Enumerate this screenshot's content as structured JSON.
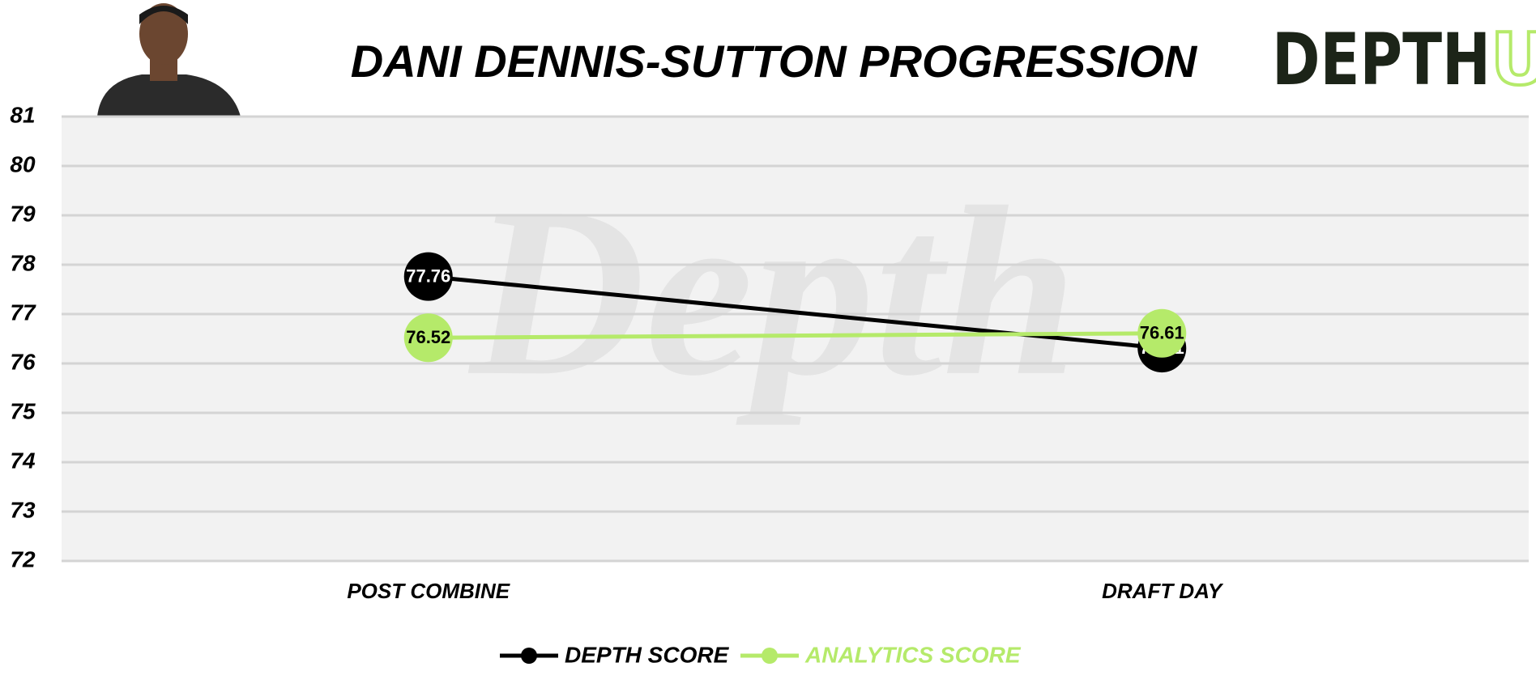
{
  "logo": {
    "main": "DEPTH",
    "accent": "U"
  },
  "watermark": "Depth",
  "chart_data": {
    "type": "line",
    "title": "DANI DENNIS-SUTTON PROGRESSION",
    "categories": [
      "POST COMBINE",
      "DRAFT DAY"
    ],
    "series": [
      {
        "name": "DEPTH SCORE",
        "color": "#000000",
        "values": [
          77.76,
          76.31
        ]
      },
      {
        "name": "ANALYTICS SCORE",
        "color": "#b5ea6a",
        "values": [
          76.52,
          76.61
        ]
      }
    ],
    "ylim": [
      72,
      81
    ],
    "yticks": [
      72,
      73,
      74,
      75,
      76,
      77,
      78,
      79,
      80,
      81
    ],
    "grid": true
  }
}
